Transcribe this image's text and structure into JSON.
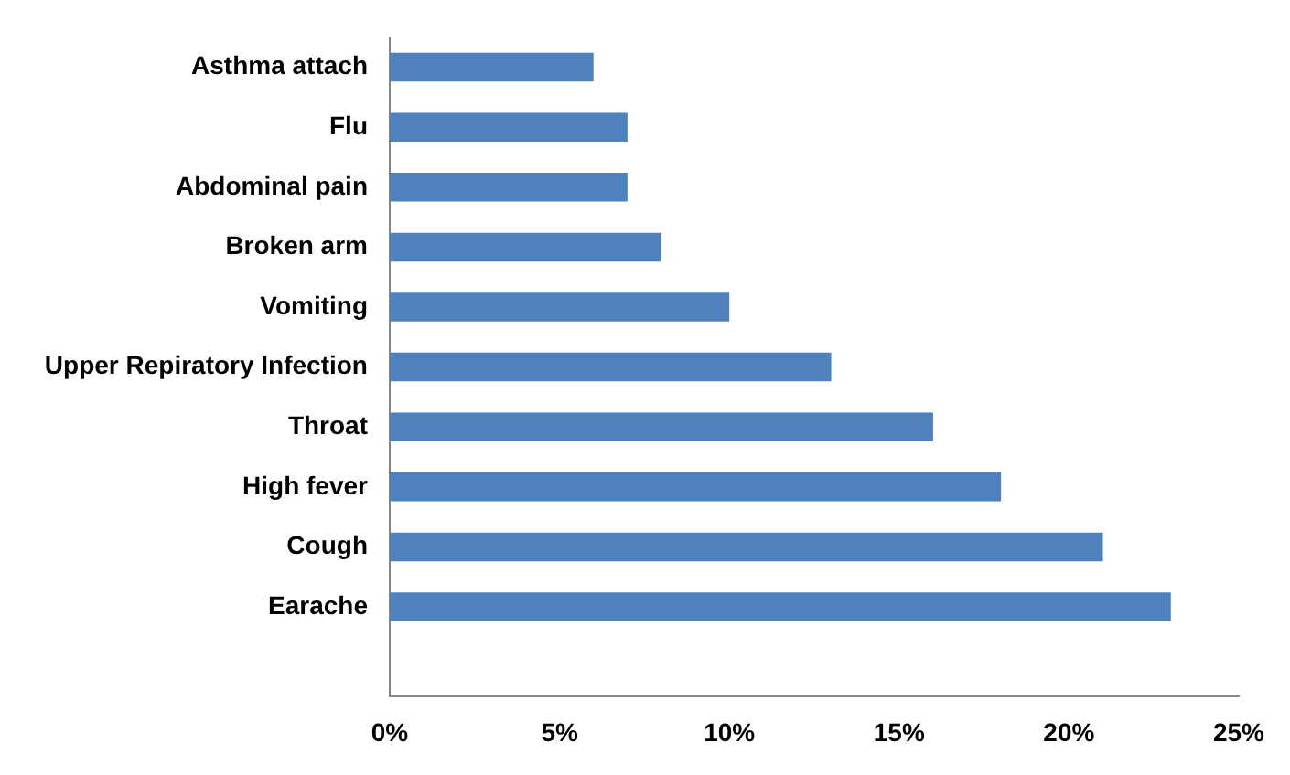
{
  "chart_data": {
    "type": "bar",
    "orientation": "horizontal",
    "categories": [
      "Asthma attach",
      "Flu",
      "Abdominal pain",
      "Broken arm",
      "Vomiting",
      "Upper Repiratory Infection",
      "Throat",
      "High fever",
      "Cough",
      "Earache",
      null
    ],
    "values": [
      6,
      7,
      7,
      8,
      10,
      13,
      16,
      18,
      21,
      23,
      null
    ],
    "color": "#4f81bd",
    "xlim": [
      0,
      25
    ],
    "xticks": [
      {
        "value": 0,
        "label": "0%"
      },
      {
        "value": 5,
        "label": "5%"
      },
      {
        "value": 10,
        "label": "10%"
      },
      {
        "value": 15,
        "label": "15%"
      },
      {
        "value": 20,
        "label": "20%"
      },
      {
        "value": 25,
        "label": "25%"
      }
    ],
    "grid": false,
    "legend": false
  }
}
